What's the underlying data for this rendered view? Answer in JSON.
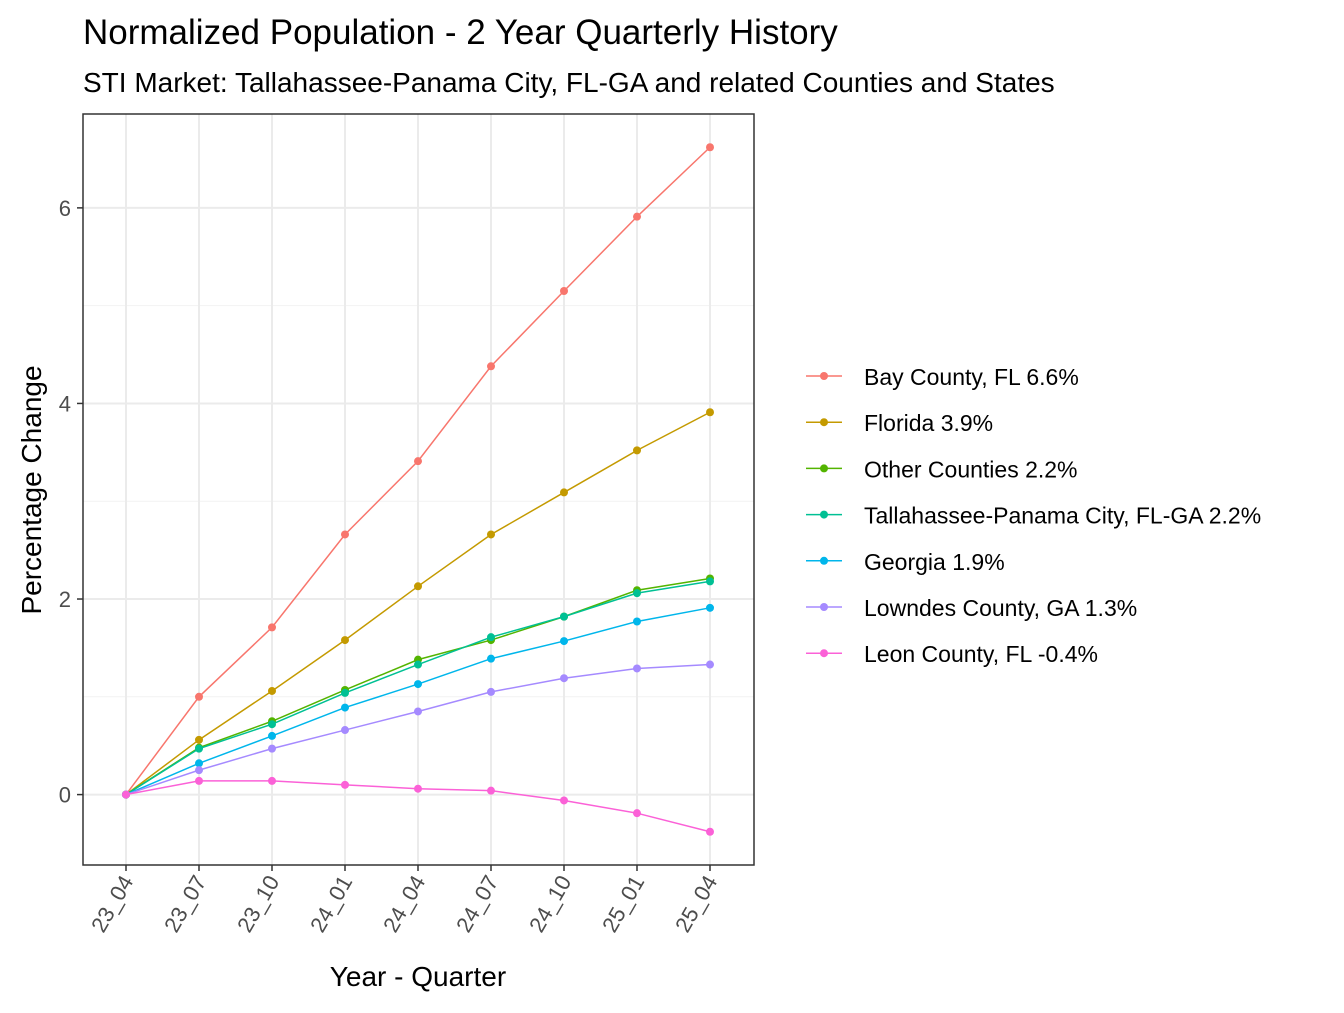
{
  "chart_data": {
    "type": "line",
    "title": "Normalized Population - 2 Year Quarterly History",
    "subtitle": "STI Market: Tallahassee-Panama City, FL-GA and related Counties and States",
    "xlabel": "Year - Quarter",
    "ylabel": "Percentage Change",
    "categories": [
      "23_04",
      "23_07",
      "23_10",
      "24_01",
      "24_04",
      "24_07",
      "24_10",
      "25_01",
      "25_04"
    ],
    "ylim": [
      -0.72,
      6.96
    ],
    "yticks": [
      0,
      2,
      4,
      6
    ],
    "grid": true,
    "legend_position": "right",
    "series": [
      {
        "name": "Bay County, FL 6.6%",
        "color": "#F8766D",
        "values": [
          0,
          1.0,
          1.71,
          2.66,
          3.41,
          4.38,
          5.15,
          5.91,
          6.62
        ]
      },
      {
        "name": "Florida 3.9%",
        "color": "#C49A00",
        "values": [
          0,
          0.56,
          1.06,
          1.58,
          2.13,
          2.66,
          3.09,
          3.52,
          3.91
        ]
      },
      {
        "name": "Other Counties 2.2%",
        "color": "#53B400",
        "values": [
          0,
          0.48,
          0.75,
          1.07,
          1.38,
          1.58,
          1.82,
          2.09,
          2.21
        ]
      },
      {
        "name": "Tallahassee-Panama City, FL-GA 2.2%",
        "color": "#00C094",
        "values": [
          0,
          0.47,
          0.72,
          1.04,
          1.33,
          1.61,
          1.82,
          2.06,
          2.18
        ]
      },
      {
        "name": "Georgia 1.9%",
        "color": "#00B6EB",
        "values": [
          0,
          0.32,
          0.6,
          0.89,
          1.13,
          1.39,
          1.57,
          1.77,
          1.91
        ]
      },
      {
        "name": "Lowndes County, GA 1.3%",
        "color": "#A58AFF",
        "values": [
          0,
          0.25,
          0.47,
          0.66,
          0.85,
          1.05,
          1.19,
          1.29,
          1.33
        ]
      },
      {
        "name": "Leon County, FL -0.4%",
        "color": "#FB61D7",
        "values": [
          0,
          0.14,
          0.14,
          0.1,
          0.06,
          0.04,
          -0.06,
          -0.19,
          -0.38
        ]
      }
    ]
  }
}
